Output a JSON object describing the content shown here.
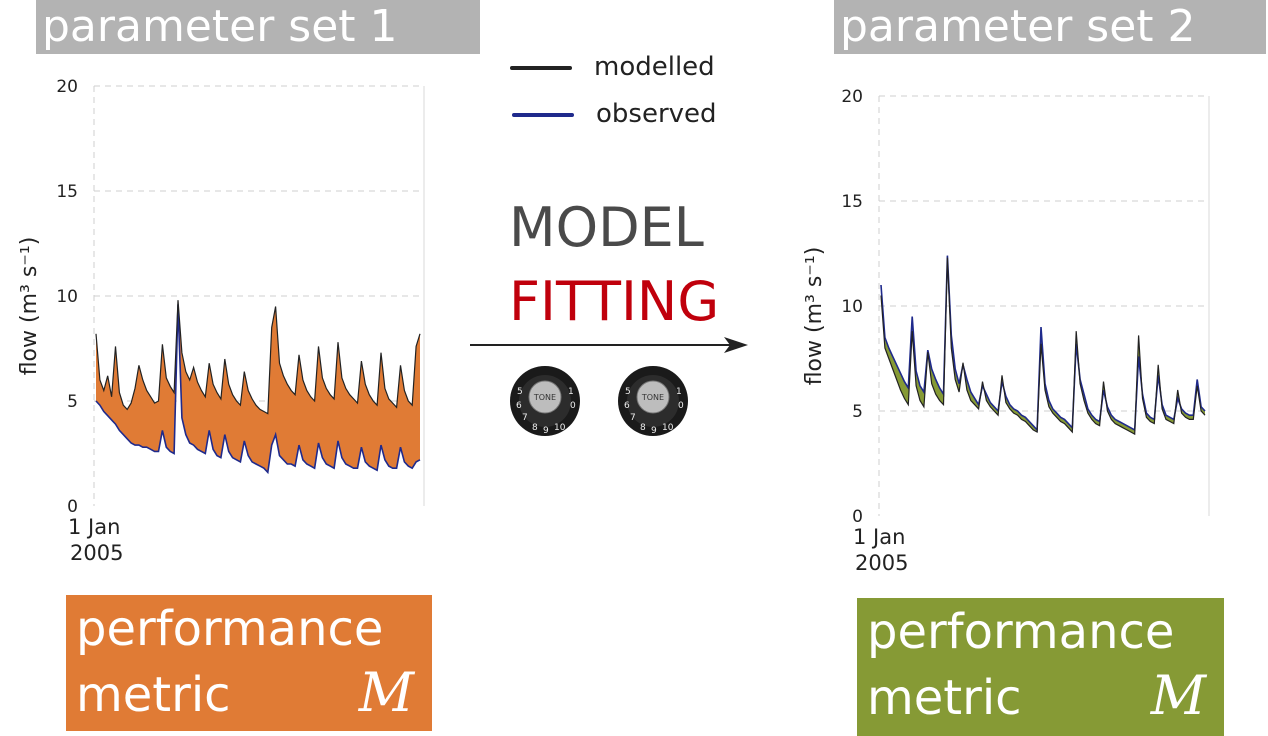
{
  "left_banner": "parameter set 1",
  "right_banner": "parameter set 2",
  "legend": {
    "items": [
      {
        "label": "modelled",
        "color": "#222222"
      },
      {
        "label": "observed",
        "color": "#1f2a8c"
      }
    ]
  },
  "center": {
    "line1": "MODEL",
    "line2": "FITTING",
    "line1_color": "#4a4a4a",
    "line2_color": "#c0000c",
    "knob_label": "TONE",
    "arrow": "right-arrow"
  },
  "left_metric": {
    "line1": "performance",
    "line2": "metric",
    "symbol": "M",
    "color": "#e07b35"
  },
  "right_metric": {
    "line1": "performance",
    "line2": "metric",
    "symbol": "M",
    "color": "#869a35"
  },
  "chart_data": [
    {
      "type": "line",
      "ylabel": "flow (m³ s⁻¹)",
      "ylim": [
        0,
        20
      ],
      "yticks": [
        "0",
        "5",
        "10",
        "15",
        "20"
      ],
      "xtick_label": [
        "1 Jan",
        "2005"
      ],
      "grid": true,
      "fill_color": "#e07b35",
      "series": [
        {
          "name": "modelled",
          "values": [
            8.2,
            6.0,
            5.5,
            6.2,
            5.2,
            7.6,
            5.4,
            4.8,
            4.6,
            4.9,
            5.6,
            6.7,
            6.0,
            5.5,
            5.2,
            4.9,
            5.0,
            7.7,
            6.1,
            5.7,
            5.4,
            9.8,
            7.3,
            6.4,
            6.0,
            6.6,
            5.9,
            5.5,
            5.2,
            6.8,
            5.8,
            5.4,
            5.1,
            7.0,
            5.8,
            5.3,
            5.0,
            4.8,
            6.4,
            5.5,
            5.1,
            4.8,
            4.6,
            4.5,
            4.4,
            8.5,
            9.5,
            6.8,
            6.2,
            5.8,
            5.5,
            5.3,
            7.2,
            6.0,
            5.5,
            5.2,
            5.0,
            7.6,
            6.1,
            5.6,
            5.3,
            5.1,
            7.8,
            6.1,
            5.6,
            5.3,
            5.1,
            4.9,
            6.9,
            5.8,
            5.3,
            5.0,
            4.8,
            7.3,
            5.6,
            5.1,
            4.9,
            4.7,
            6.7,
            5.5,
            5.0,
            4.8,
            7.6,
            8.2
          ]
        },
        {
          "name": "observed",
          "values": [
            5.0,
            4.8,
            4.5,
            4.3,
            4.1,
            3.9,
            3.6,
            3.4,
            3.2,
            3.0,
            2.9,
            2.9,
            2.8,
            2.8,
            2.7,
            2.6,
            2.6,
            3.6,
            2.8,
            2.6,
            2.5,
            9.6,
            4.2,
            3.4,
            3.0,
            2.9,
            2.7,
            2.6,
            2.5,
            3.6,
            2.7,
            2.4,
            2.3,
            3.4,
            2.6,
            2.3,
            2.2,
            2.1,
            3.1,
            2.4,
            2.1,
            2.0,
            1.9,
            1.8,
            1.6,
            2.9,
            3.4,
            2.4,
            2.2,
            2.0,
            2.0,
            1.9,
            2.9,
            2.2,
            2.0,
            1.9,
            1.8,
            3.0,
            2.3,
            2.0,
            1.9,
            1.8,
            3.1,
            2.3,
            2.0,
            1.9,
            1.8,
            1.8,
            2.8,
            2.1,
            1.9,
            1.8,
            1.7,
            2.9,
            2.2,
            1.9,
            1.8,
            1.8,
            2.8,
            2.1,
            1.9,
            1.8,
            2.1,
            2.2
          ]
        }
      ]
    },
    {
      "type": "line",
      "ylabel": "flow (m³ s⁻¹)",
      "ylim": [
        0,
        20
      ],
      "yticks": [
        "0",
        "5",
        "10",
        "15",
        "20"
      ],
      "xtick_label": [
        "1 Jan",
        "2005"
      ],
      "grid": true,
      "fill_color": "#869a35",
      "series": [
        {
          "name": "modelled",
          "values": [
            10.5,
            8.0,
            7.5,
            7.0,
            6.5,
            6.0,
            5.6,
            5.3,
            8.8,
            6.2,
            5.5,
            5.2,
            7.8,
            6.3,
            5.8,
            5.5,
            5.3,
            12.3,
            8.0,
            6.5,
            5.9,
            7.3,
            6.0,
            5.5,
            5.3,
            5.1,
            6.4,
            5.5,
            5.2,
            5.0,
            4.8,
            6.7,
            5.4,
            5.1,
            4.9,
            4.8,
            4.6,
            4.5,
            4.3,
            4.1,
            4.0,
            8.2,
            6.0,
            5.2,
            4.9,
            4.7,
            4.5,
            4.4,
            4.2,
            4.0,
            8.8,
            6.3,
            5.5,
            4.9,
            4.6,
            4.4,
            4.3,
            6.4,
            5.0,
            4.6,
            4.4,
            4.3,
            4.2,
            4.1,
            4.0,
            3.9,
            8.6,
            5.6,
            4.7,
            4.5,
            4.4,
            7.2,
            5.1,
            4.6,
            4.5,
            4.4,
            6.0,
            4.9,
            4.7,
            4.6,
            4.6,
            6.2,
            5.0,
            4.8
          ]
        },
        {
          "name": "observed",
          "values": [
            11.0,
            8.5,
            8.0,
            7.6,
            7.2,
            6.8,
            6.4,
            6.1,
            9.5,
            6.9,
            6.2,
            5.9,
            7.9,
            7.0,
            6.5,
            6.1,
            5.8,
            12.4,
            8.6,
            7.0,
            6.3,
            7.2,
            6.5,
            5.9,
            5.6,
            5.3,
            6.2,
            5.8,
            5.4,
            5.2,
            5.0,
            6.4,
            5.7,
            5.3,
            5.1,
            5.0,
            4.8,
            4.7,
            4.5,
            4.3,
            4.1,
            9.0,
            6.3,
            5.5,
            5.1,
            4.9,
            4.7,
            4.6,
            4.4,
            4.2,
            8.2,
            6.5,
            5.8,
            5.1,
            4.8,
            4.6,
            4.5,
            6.0,
            5.2,
            4.8,
            4.6,
            4.5,
            4.4,
            4.3,
            4.2,
            4.1,
            7.6,
            5.8,
            4.9,
            4.7,
            4.6,
            6.7,
            5.3,
            4.8,
            4.7,
            4.6,
            5.6,
            5.1,
            4.9,
            4.8,
            4.8,
            6.5,
            5.2,
            5.0
          ]
        }
      ]
    }
  ]
}
